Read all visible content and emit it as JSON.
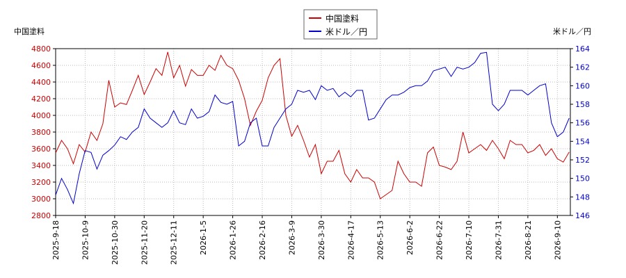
{
  "chart_data": {
    "type": "line",
    "y_label": "中国塗料",
    "y2_label": "米ドル／円",
    "categories": [
      "2025-9-18",
      null,
      null,
      null,
      null,
      "2025-10-9",
      null,
      null,
      null,
      null,
      "2025-10-30",
      null,
      null,
      null,
      null,
      "2025-11-20",
      null,
      null,
      null,
      null,
      "2025-12-11",
      null,
      null,
      null,
      null,
      "2026-1-5",
      null,
      null,
      null,
      null,
      "2026-1-26",
      null,
      null,
      null,
      null,
      "2026-2-16",
      null,
      null,
      null,
      null,
      "2026-3-9",
      null,
      null,
      null,
      null,
      "2026-3-30",
      null,
      null,
      null,
      null,
      "2026-4-17",
      null,
      null,
      null,
      null,
      "2026-5-13",
      null,
      null,
      null,
      null,
      "2026-6-2",
      null,
      null,
      null,
      null,
      "2026-6-22",
      null,
      null,
      null,
      null,
      "2026-7-10",
      null,
      null,
      null,
      null,
      "2026-7-31",
      null,
      null,
      null,
      null,
      "2026-8-21",
      null,
      null,
      null,
      null,
      "2026-9-10",
      null,
      null
    ],
    "series": [
      {
        "name": "中国塗料",
        "color": "#cc0000",
        "axis": "y",
        "values": [
          3550,
          3700,
          3600,
          3420,
          3650,
          3560,
          3800,
          3700,
          3900,
          4420,
          4100,
          4150,
          4130,
          4300,
          4480,
          4250,
          4400,
          4560,
          4480,
          4760,
          4450,
          4600,
          4350,
          4550,
          4480,
          4480,
          4600,
          4540,
          4720,
          4600,
          4560,
          4420,
          4200,
          3880,
          4050,
          4180,
          4450,
          4600,
          4680,
          4000,
          3750,
          3880,
          3700,
          3500,
          3650,
          3300,
          3450,
          3450,
          3580,
          3300,
          3200,
          3350,
          3250,
          3250,
          3200,
          3000,
          3050,
          3100,
          3450,
          3300,
          3200,
          3200,
          3150,
          3550,
          3620,
          3400,
          3380,
          3350,
          3450,
          3800,
          3550,
          3600,
          3650,
          3580,
          3700,
          3600,
          3480,
          3700,
          3650,
          3650,
          3550,
          3580,
          3650,
          3520,
          3600,
          3480,
          3440,
          3560
        ]
      },
      {
        "name": "米ドル／円",
        "color": "#0000cc",
        "axis": "y2",
        "values": [
          148.2,
          150,
          148.8,
          147.3,
          150.5,
          153,
          152.8,
          151,
          152.5,
          153,
          153.6,
          154.5,
          154.2,
          155,
          155.5,
          157.5,
          156.5,
          156,
          155.5,
          156,
          157.3,
          156,
          155.8,
          157.5,
          156.5,
          156.7,
          157.2,
          159,
          158.2,
          158,
          158.3,
          153.5,
          154,
          156,
          156.5,
          153.5,
          153.5,
          155.5,
          156.5,
          157.5,
          158,
          159.5,
          159.3,
          159.5,
          158.5,
          160,
          159.5,
          159.7,
          158.8,
          159.3,
          158.8,
          159.5,
          159.5,
          156.3,
          156.5,
          157.5,
          158.5,
          159,
          159,
          159.3,
          159.8,
          160,
          160,
          160.5,
          161.6,
          161.8,
          162,
          161,
          162,
          161.8,
          162,
          162.5,
          163.5,
          163.6,
          158,
          157.3,
          158,
          159.5,
          159.5,
          159.5,
          159,
          159.5,
          160,
          160.2,
          156,
          154.5,
          155,
          156.5
        ]
      }
    ],
    "ylim": [
      2800,
      4800
    ],
    "yticks": [
      2800,
      3000,
      3200,
      3400,
      3600,
      3800,
      4000,
      4200,
      4400,
      4600,
      4800
    ],
    "y2lim": [
      146,
      164
    ],
    "y2ticks": [
      146,
      148,
      150,
      152,
      154,
      156,
      158,
      160,
      162,
      164
    ],
    "grid": true
  }
}
